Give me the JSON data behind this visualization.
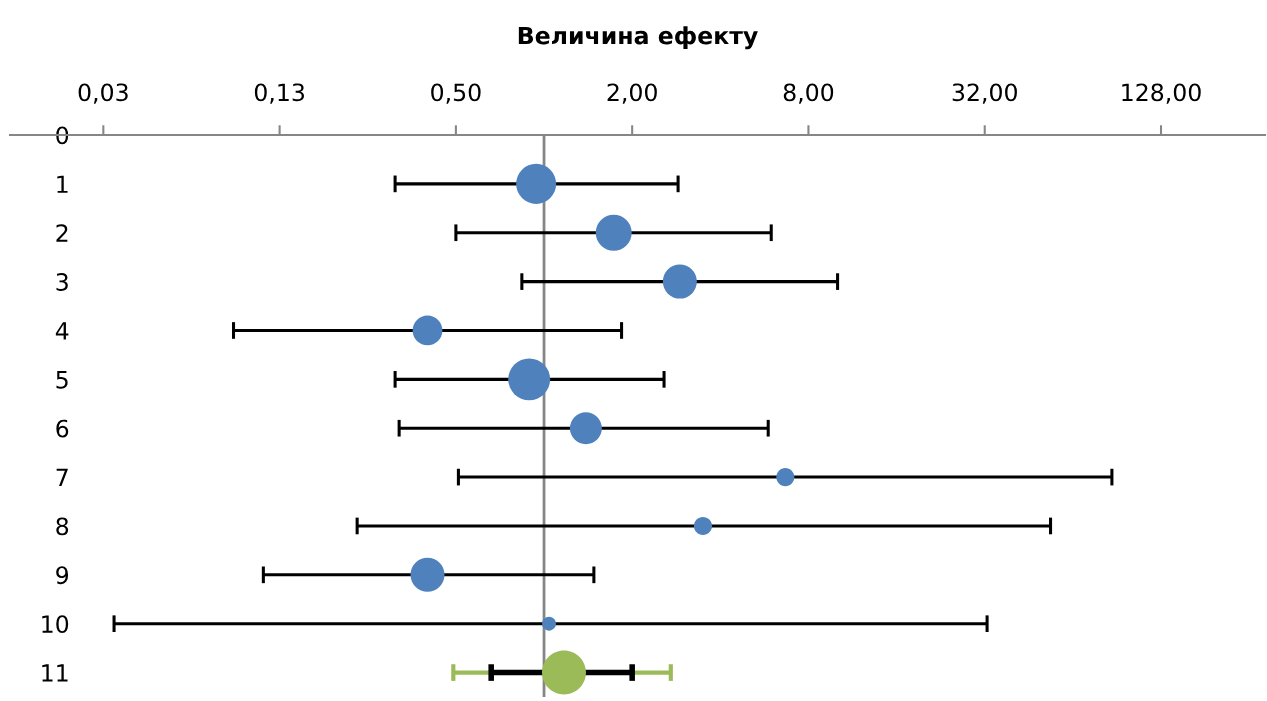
{
  "chart_data": {
    "type": "bubble",
    "xlabel": "Величина ефекту",
    "log": "x",
    "xlim": [
      0.015,
      290
    ],
    "xticks": [
      {
        "value": 0.03125,
        "label": "0,03"
      },
      {
        "value": 0.125,
        "label": "0,13"
      },
      {
        "value": 0.5,
        "label": "0,50"
      },
      {
        "value": 2,
        "label": "2,00"
      },
      {
        "value": 8,
        "label": "8,00"
      },
      {
        "value": 32,
        "label": "32,00"
      },
      {
        "value": 128,
        "label": "128,00"
      }
    ],
    "ylim": [
      11.5,
      0
    ],
    "yticks": [
      0,
      1,
      2,
      3,
      4,
      5,
      6,
      7,
      8,
      9,
      10,
      11
    ],
    "grid": false,
    "legend": false,
    "marker": "circle",
    "ref_lines": [
      {
        "axis": "x",
        "value": 1,
        "label": null,
        "color": "#868686"
      }
    ],
    "series": [
      {
        "color": "#4f81bd",
        "x": [
          0.94,
          1.73,
          2.91,
          0.4,
          0.89,
          1.39,
          6.67,
          3.49,
          0.4,
          1.04
        ],
        "values": [
          1,
          2,
          3,
          4,
          5,
          6,
          7,
          8,
          9,
          10
        ],
        "sizes": [
          0.83,
          0.67,
          0.6,
          0.46,
          0.91,
          0.53,
          0.17,
          0.17,
          0.6,
          0.1
        ],
        "xerrors": [
          [
            0.31,
            2.87
          ],
          [
            0.5,
            5.97
          ],
          [
            0.84,
            10.06
          ],
          [
            0.087,
            1.84
          ],
          [
            0.31,
            2.57
          ],
          [
            0.32,
            5.83
          ],
          [
            0.51,
            87.0
          ],
          [
            0.23,
            53.7
          ],
          [
            0.11,
            1.48
          ],
          [
            0.034,
            32.6
          ]
        ]
      },
      {
        "type": "line",
        "color": "#000000",
        "marker": "none",
        "x": [
          0.66,
          2.0
        ],
        "values": [
          11,
          11
        ]
      },
      {
        "color": "#9bbb59",
        "x": [
          1.17
        ],
        "values": [
          11
        ],
        "sizes": [
          1.0
        ],
        "xerrors": [
          [
            0.49,
            2.71
          ]
        ]
      }
    ]
  }
}
